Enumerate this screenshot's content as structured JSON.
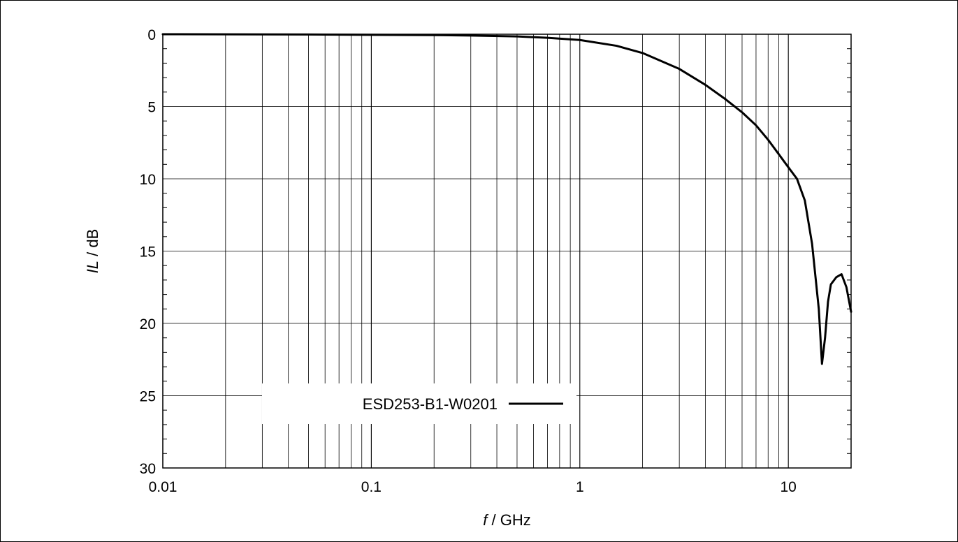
{
  "chart_data": {
    "type": "line",
    "xscale": "log",
    "xlim": [
      0.01,
      20
    ],
    "ylim": [
      0,
      30
    ],
    "y_inverted": true,
    "grid": true,
    "xlabel": {
      "italic": "f",
      "rest": " / GHz"
    },
    "ylabel": {
      "italic": "IL",
      "rest": " / dB"
    },
    "x_ticks": [
      {
        "value": 0.01,
        "label": "0.01"
      },
      {
        "value": 0.1,
        "label": "0.1"
      },
      {
        "value": 1,
        "label": "1"
      },
      {
        "value": 10,
        "label": "10"
      }
    ],
    "y_ticks": [
      {
        "value": 0,
        "label": "0"
      },
      {
        "value": 5,
        "label": "5"
      },
      {
        "value": 10,
        "label": "10"
      },
      {
        "value": 15,
        "label": "15"
      },
      {
        "value": 20,
        "label": "20"
      },
      {
        "value": 25,
        "label": "25"
      },
      {
        "value": 30,
        "label": "30"
      }
    ],
    "legend_position": "lower-left",
    "series": [
      {
        "name": "ESD253-B1-W0201",
        "color": "#000000",
        "x": [
          0.01,
          0.05,
          0.1,
          0.2,
          0.3,
          0.5,
          0.7,
          1,
          1.5,
          2,
          3,
          4,
          5,
          6,
          7,
          8,
          9,
          10,
          11,
          12,
          13,
          14,
          14.5,
          15,
          15.5,
          16,
          17,
          18,
          19,
          20
        ],
        "y": [
          0.0,
          0.02,
          0.04,
          0.06,
          0.09,
          0.15,
          0.25,
          0.4,
          0.8,
          1.3,
          2.4,
          3.5,
          4.5,
          5.4,
          6.3,
          7.3,
          8.3,
          9.2,
          10.0,
          11.5,
          14.5,
          19.0,
          22.8,
          21.0,
          18.5,
          17.3,
          16.8,
          16.6,
          17.5,
          19.2
        ]
      }
    ]
  }
}
